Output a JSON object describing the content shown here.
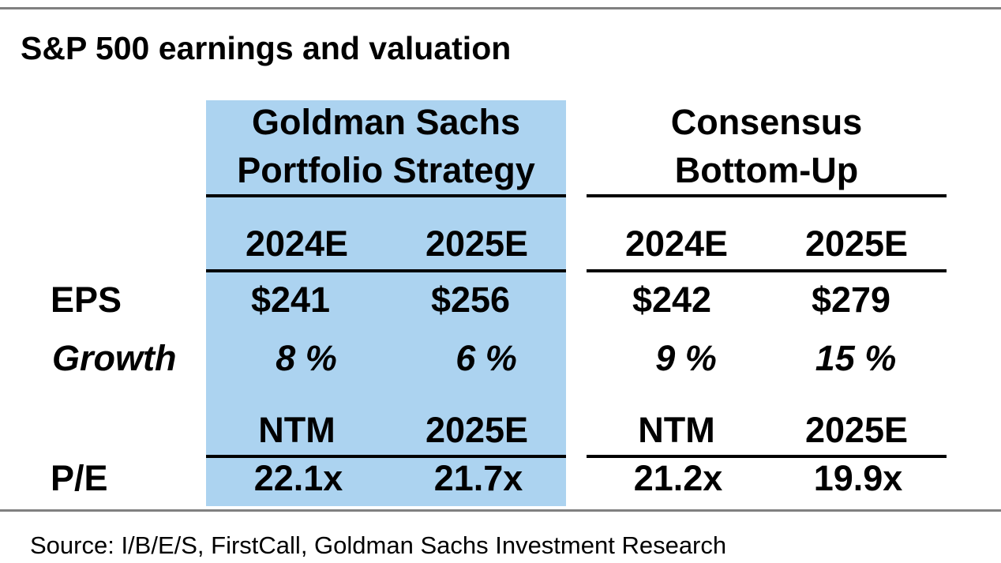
{
  "title": "S&P 500 earnings and valuation",
  "colors": {
    "highlight": "#acd3f0",
    "rule": "#808080",
    "text": "#000000"
  },
  "groups": [
    {
      "name_line1": "Goldman Sachs",
      "name_line2": "Portfolio Strategy"
    },
    {
      "name_line1": "Consensus",
      "name_line2": "Bottom-Up"
    }
  ],
  "year_headers": [
    "2024E",
    "2025E",
    "2024E",
    "2025E"
  ],
  "rows": {
    "eps": {
      "label": "EPS",
      "values": [
        "$241",
        "$256",
        "$242",
        "$279"
      ]
    },
    "growth": {
      "label": "Growth",
      "values": [
        "8 %",
        "6 %",
        "9 %",
        "15 %"
      ]
    }
  },
  "pe_headers": [
    "NTM",
    "2025E",
    "NTM",
    "2025E"
  ],
  "pe": {
    "label": "P/E",
    "values": [
      "22.1x",
      "21.7x",
      "21.2x",
      "19.9x"
    ]
  },
  "source": "Source:  I/B/E/S, FirstCall, Goldman Sachs Investment Research"
}
